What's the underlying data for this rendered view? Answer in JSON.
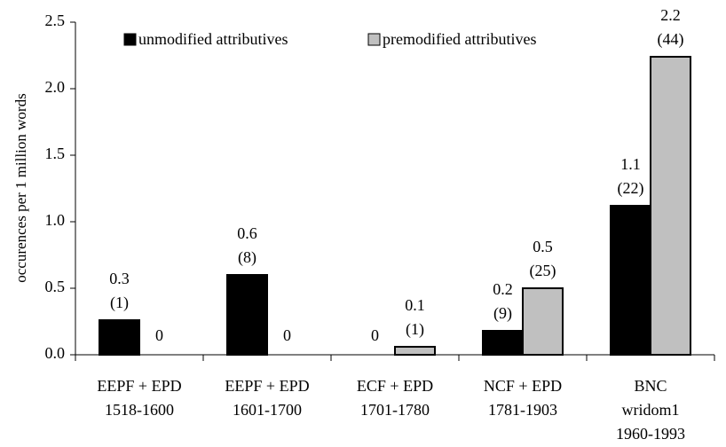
{
  "chart_data": {
    "type": "bar",
    "y_label": "occurences per 1 million words",
    "categories": [
      [
        "EEPF + EPD",
        "1518-1600"
      ],
      [
        "EEPF + EPD",
        "1601-1700"
      ],
      [
        "ECF + EPD",
        "1701-1780"
      ],
      [
        "NCF + EPD",
        "1781-1903"
      ],
      [
        "BNC",
        "wridom1",
        "1960-1993"
      ]
    ],
    "series": [
      {
        "name": "unmodified attributives",
        "color": "#000000",
        "values": [
          0.26,
          0.6,
          0,
          0.18,
          1.12
        ],
        "value_labels": [
          "0.3",
          "0.6",
          "0",
          "0.2",
          "1.1"
        ],
        "count_labels": [
          "(1)",
          "(8)",
          null,
          "(9)",
          "(22)"
        ]
      },
      {
        "name": "premodified attributives",
        "color": "#c0c0c0",
        "values": [
          0,
          0,
          0.06,
          0.5,
          2.24
        ],
        "value_labels": [
          "0",
          "0",
          "0.1",
          "0.5",
          "2.2"
        ],
        "count_labels": [
          null,
          null,
          "(1)",
          "(25)",
          "(44)"
        ]
      }
    ],
    "ylim": [
      0,
      2.5
    ],
    "yticks": [
      {
        "value": 0,
        "label": "0.0"
      },
      0.5,
      {
        "value": 1,
        "label": "1.0"
      },
      1.5,
      {
        "value": 2,
        "label": "2.0"
      },
      2.5
    ],
    "legend": "top"
  }
}
